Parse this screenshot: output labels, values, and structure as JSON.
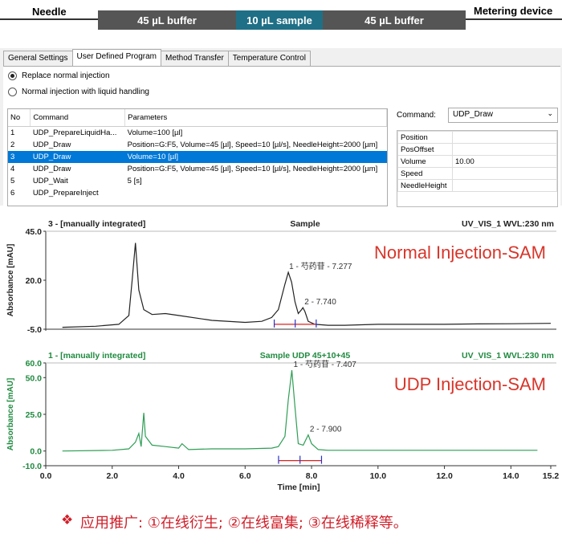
{
  "header": {
    "needle_label": "Needle",
    "metering_label": "Metering device",
    "segments": [
      "45 µL buffer",
      "10 µL sample",
      "45 µL buffer"
    ],
    "colors": {
      "buffer": "#555555",
      "sample": "#1f6f86"
    }
  },
  "tabs": [
    "General Settings",
    "User Defined Program",
    "Method Transfer",
    "Temperature Control"
  ],
  "radio": {
    "replace": "Replace normal injection",
    "liquid": "Normal injection with liquid handling"
  },
  "table": {
    "headers": [
      "No",
      "Command",
      "Parameters"
    ],
    "rows": [
      {
        "no": "1",
        "cmd": "UDP_PrepareLiquidHa...",
        "params": "Volume=100 [µl]"
      },
      {
        "no": "2",
        "cmd": "UDP_Draw",
        "params": "Position=G:F5, Volume=45 [µl], Speed=10 [µl/s], NeedleHeight=2000 [µm]"
      },
      {
        "no": "3",
        "cmd": "UDP_Draw",
        "params": "Volume=10 [µl]"
      },
      {
        "no": "4",
        "cmd": "UDP_Draw",
        "params": "Position=G:F5, Volume=45 [µl], Speed=10 [µl/s], NeedleHeight=2000 [µm]"
      },
      {
        "no": "5",
        "cmd": "UDP_Wait",
        "params": "5 [s]"
      },
      {
        "no": "6",
        "cmd": "UDP_PrepareInject",
        "params": ""
      }
    ]
  },
  "command": {
    "label": "Command:",
    "value": "UDP_Draw",
    "props": [
      {
        "name": "Position",
        "value": ""
      },
      {
        "name": "PosOffset",
        "value": ""
      },
      {
        "name": "Volume",
        "value": "10.00"
      },
      {
        "name": "Speed",
        "value": ""
      },
      {
        "name": "NeedleHeight",
        "value": ""
      }
    ]
  },
  "chart_data": [
    {
      "type": "line",
      "header_left": "3 - [manually integrated]",
      "header_center": "Sample",
      "header_right": "UV_VIS_1 WVL:230 nm",
      "annotation": "Normal Injection-SAM",
      "ylabel": "Absorbance [mAU]",
      "yticks": [
        "45.0",
        "20.0",
        "-5.0"
      ],
      "ylim": [
        -5,
        45
      ],
      "xlim": [
        0,
        15.2
      ],
      "color": "#222222",
      "peaks": [
        {
          "label": "1 - 芍药苷 - 7.277",
          "x": 7.277,
          "y": 24
        },
        {
          "label": "2 - 7.740",
          "x": 7.74,
          "y": 6
        }
      ],
      "x": [
        0.5,
        1.5,
        2.2,
        2.5,
        2.6,
        2.7,
        2.8,
        2.95,
        3.2,
        3.6,
        4.0,
        5.0,
        6.0,
        6.5,
        6.8,
        7.0,
        7.2,
        7.3,
        7.4,
        7.5,
        7.6,
        7.7,
        7.74,
        7.8,
        7.9,
        8.1,
        8.5,
        9.0,
        10.0,
        11.0,
        12.0,
        13.0,
        14.0,
        15.2
      ],
      "y": [
        -4,
        -3.5,
        -2.5,
        2,
        20,
        39,
        15,
        5,
        2.5,
        3,
        2,
        -0.5,
        -1.5,
        -1,
        1,
        5,
        18,
        24,
        19,
        9,
        3,
        5,
        6,
        4,
        -1,
        -2.5,
        -3,
        -3,
        -2.5,
        -2.5,
        -2.5,
        -2.3,
        -2.2,
        -2
      ]
    },
    {
      "type": "line",
      "header_left": "1 - [manually integrated]",
      "header_center": "Sample UDP 45+10+45",
      "header_right": "UV_VIS_1 WVL:230 nm",
      "annotation": "UDP Injection-SAM",
      "ylabel": "Absorbance [mAU]",
      "xlabel": "Time [min]",
      "yticks": [
        "60.0",
        "50.0",
        "25.0",
        "0.0",
        "-10.0"
      ],
      "xticks": [
        "0.0",
        "2.0",
        "4.0",
        "6.0",
        "8.0",
        "10.0",
        "12.0",
        "14.0",
        "15.2"
      ],
      "ylim": [
        -10,
        60
      ],
      "xlim": [
        0,
        15.2
      ],
      "color": "#2e9e55",
      "peaks": [
        {
          "label": "1 - 芍药苷 - 7.407",
          "x": 7.407,
          "y": 55
        },
        {
          "label": "2 - 7.900",
          "x": 7.9,
          "y": 11
        }
      ],
      "x": [
        0.5,
        2.0,
        2.5,
        2.7,
        2.8,
        2.87,
        2.95,
        3.0,
        3.2,
        3.6,
        4.0,
        4.1,
        4.3,
        5.0,
        6.0,
        6.8,
        7.0,
        7.2,
        7.3,
        7.407,
        7.5,
        7.6,
        7.75,
        7.9,
        8.0,
        8.2,
        8.5,
        9.0,
        10.0,
        12.0,
        14.0,
        14.8
      ],
      "y": [
        0,
        0.5,
        1.5,
        6,
        12,
        3,
        26,
        10,
        4,
        3,
        2,
        5,
        1,
        1.5,
        1.5,
        2,
        3,
        10,
        35,
        55,
        30,
        5,
        4,
        11,
        5,
        1,
        0.5,
        0.5,
        0.5,
        0.5,
        0.5,
        0.5
      ]
    }
  ],
  "note": "应用推广: ①在线衍生; ②在线富集; ③在线稀释等。",
  "note_icon": "diamond-cross-icon"
}
